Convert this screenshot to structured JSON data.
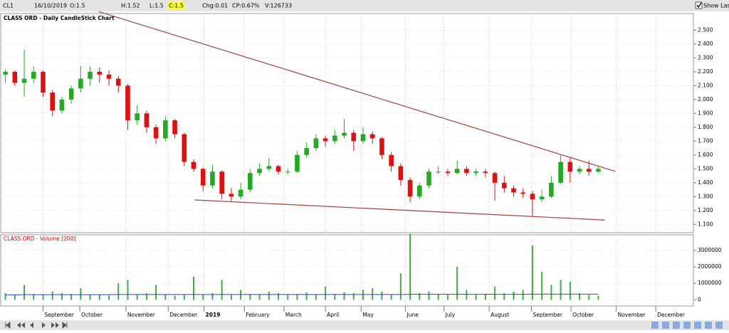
{
  "toolbar": {
    "symbol": "CL1",
    "date": "16/10/2019",
    "open": "O:1.5",
    "high": "H:1.52",
    "low": "L:1.5",
    "close": "C:1.5",
    "change": "Chg:0.01",
    "change_pct": "CP:0.67%",
    "volume": "V:126733",
    "show_last": "Show Last"
  },
  "chart_data": [
    {
      "type": "candlestick",
      "title": "CLASS ORD - Daily CandleStick Chart",
      "x": [
        0,
        1,
        2,
        3,
        4,
        5,
        6,
        7,
        8,
        9,
        10,
        11,
        12,
        13,
        14,
        15,
        16,
        17,
        18,
        19,
        20,
        21,
        22,
        23,
        24,
        25,
        26,
        27,
        28,
        29,
        30,
        31,
        32,
        33,
        34,
        35,
        36,
        37,
        38,
        39,
        40,
        41,
        42,
        43,
        44,
        45,
        46,
        47,
        48,
        49,
        50,
        51,
        52,
        53,
        54,
        55,
        56,
        57,
        58,
        59,
        60,
        61,
        62,
        63
      ],
      "open": [
        2.18,
        2.2,
        2.12,
        2.15,
        2.2,
        2.05,
        1.92,
        2.0,
        2.08,
        2.15,
        2.2,
        2.18,
        2.15,
        2.1,
        1.85,
        1.9,
        1.8,
        1.72,
        1.85,
        1.75,
        1.55,
        1.5,
        1.38,
        1.48,
        1.32,
        1.3,
        1.35,
        1.47,
        1.5,
        1.52,
        1.48,
        1.48,
        1.6,
        1.65,
        1.72,
        1.7,
        1.74,
        1.76,
        1.7,
        1.75,
        1.72,
        1.6,
        1.52,
        1.42,
        1.3,
        1.38,
        1.48,
        1.48,
        1.47,
        1.5,
        1.47,
        1.48,
        1.47,
        1.4,
        1.36,
        1.33,
        1.32,
        1.28,
        1.3,
        1.4,
        1.55,
        1.48,
        1.5,
        1.48
      ],
      "high": [
        2.22,
        2.21,
        2.36,
        2.24,
        2.21,
        2.07,
        2.02,
        2.1,
        2.24,
        2.24,
        2.23,
        2.21,
        2.17,
        2.11,
        1.96,
        1.92,
        1.82,
        1.88,
        1.86,
        1.76,
        1.57,
        1.51,
        1.53,
        1.49,
        1.36,
        1.4,
        1.5,
        1.54,
        1.58,
        1.53,
        1.5,
        1.63,
        1.69,
        1.75,
        1.74,
        1.78,
        1.86,
        1.78,
        1.8,
        1.77,
        1.73,
        1.62,
        1.54,
        1.44,
        1.4,
        1.5,
        1.52,
        1.5,
        1.56,
        1.52,
        1.5,
        1.5,
        1.48,
        1.45,
        1.38,
        1.36,
        1.34,
        1.35,
        1.45,
        1.6,
        1.58,
        1.52,
        1.56,
        1.52
      ],
      "low": [
        2.12,
        2.1,
        2.02,
        2.12,
        2.02,
        1.88,
        1.9,
        1.97,
        2.05,
        2.1,
        2.12,
        2.1,
        2.05,
        1.78,
        1.82,
        1.76,
        1.68,
        1.7,
        1.72,
        1.52,
        1.48,
        1.34,
        1.36,
        1.28,
        1.26,
        1.28,
        1.33,
        1.45,
        1.48,
        1.46,
        1.46,
        1.47,
        1.58,
        1.63,
        1.66,
        1.68,
        1.72,
        1.63,
        1.68,
        1.68,
        1.57,
        1.48,
        1.38,
        1.26,
        1.28,
        1.36,
        1.46,
        1.45,
        1.46,
        1.45,
        1.45,
        1.44,
        1.27,
        1.33,
        1.3,
        1.29,
        1.16,
        1.26,
        1.29,
        1.39,
        1.4,
        1.46,
        1.45,
        1.47
      ],
      "close": [
        2.2,
        2.12,
        2.15,
        2.2,
        2.05,
        1.92,
        2.0,
        2.08,
        2.15,
        2.2,
        2.18,
        2.15,
        2.1,
        1.85,
        1.9,
        1.8,
        1.72,
        1.85,
        1.75,
        1.55,
        1.5,
        1.38,
        1.48,
        1.32,
        1.3,
        1.35,
        1.47,
        1.5,
        1.52,
        1.48,
        1.48,
        1.6,
        1.65,
        1.72,
        1.7,
        1.74,
        1.76,
        1.7,
        1.75,
        1.72,
        1.6,
        1.52,
        1.42,
        1.3,
        1.38,
        1.48,
        1.48,
        1.47,
        1.5,
        1.47,
        1.48,
        1.47,
        1.4,
        1.36,
        1.33,
        1.32,
        1.28,
        1.3,
        1.4,
        1.55,
        1.48,
        1.5,
        1.48,
        1.5
      ],
      "up_color": "#22aa22",
      "down_color": "#dd1111",
      "trendlines": [
        {
          "x": [
            9.9,
            64.8
          ],
          "y": [
            2.634,
            1.482
          ],
          "color": "#a04040"
        },
        {
          "x": [
            20.1,
            63.7
          ],
          "y": [
            1.276,
            1.131
          ],
          "color": "#a04040"
        }
      ],
      "xlim": [
        -0.5,
        73.1
      ],
      "ylim": [
        1.04,
        2.62
      ],
      "xticks": [
        {
          "value": 4.0,
          "label": "September"
        },
        {
          "value": 7.9,
          "label": "October"
        },
        {
          "value": 12.8,
          "label": "November"
        },
        {
          "value": 17.3,
          "label": "December"
        },
        {
          "value": 21.1,
          "label": "2019"
        },
        {
          "value": 25.4,
          "label": "February"
        },
        {
          "value": 29.6,
          "label": "March"
        },
        {
          "value": 34.0,
          "label": "April"
        },
        {
          "value": 37.8,
          "label": "May"
        },
        {
          "value": 42.5,
          "label": "June"
        },
        {
          "value": 46.6,
          "label": "July"
        },
        {
          "value": 51.4,
          "label": "August"
        },
        {
          "value": 55.9,
          "label": "September"
        },
        {
          "value": 60.1,
          "label": "October"
        },
        {
          "value": 64.9,
          "label": "November"
        },
        {
          "value": 69.1,
          "label": "December"
        }
      ],
      "yticks": [
        {
          "value": 1.1,
          "label": "1.100"
        },
        {
          "value": 1.2,
          "label": "1.200"
        },
        {
          "value": 1.3,
          "label": "1.300"
        },
        {
          "value": 1.4,
          "label": "1.400"
        },
        {
          "value": 1.5,
          "label": "1.500"
        },
        {
          "value": 1.6,
          "label": "1.600"
        },
        {
          "value": 1.7,
          "label": "1.700"
        },
        {
          "value": 1.8,
          "label": "1.800"
        },
        {
          "value": 1.9,
          "label": "1.900"
        },
        {
          "value": 2.0,
          "label": "2.000"
        },
        {
          "value": 2.1,
          "label": "2.100"
        },
        {
          "value": 2.2,
          "label": "2.200"
        },
        {
          "value": 2.3,
          "label": "2.300"
        },
        {
          "value": 2.4,
          "label": "2.400"
        },
        {
          "value": 2.5,
          "label": "2.500"
        }
      ],
      "grid": true
    },
    {
      "type": "bar",
      "title": "CLASS ORD - Volume [200]",
      "values": [
        400000,
        300000,
        900000,
        350000,
        300000,
        500000,
        400000,
        350000,
        700000,
        300000,
        300000,
        250000,
        1000000,
        1200000,
        300000,
        400000,
        900000,
        300000,
        250000,
        300000,
        1400000,
        300000,
        400000,
        1200000,
        300000,
        600000,
        350000,
        300000,
        500000,
        400000,
        300000,
        350000,
        450000,
        300000,
        800000,
        350000,
        450000,
        400000,
        600000,
        700000,
        500000,
        300000,
        1600000,
        4000000,
        400000,
        500000,
        350000,
        300000,
        2000000,
        600000,
        300000,
        350000,
        800000,
        400000,
        500000,
        600000,
        3300000,
        1700000,
        900000,
        1200000,
        1100000,
        400000,
        300000,
        250000
      ],
      "moving_average": [
        300000,
        300000,
        310000,
        310000,
        310000,
        310000,
        310000,
        310000,
        310000,
        310000,
        310000,
        310000,
        320000,
        320000,
        320000,
        320000,
        320000,
        320000,
        320000,
        320000,
        320000,
        320000,
        320000,
        320000,
        320000,
        320000,
        320000,
        320000,
        320000,
        320000,
        320000,
        320000,
        320000,
        320000,
        320000,
        320000,
        320000,
        320000,
        320000,
        320000,
        320000,
        320000,
        320000,
        330000,
        330000,
        330000,
        330000,
        330000,
        330000,
        330000,
        330000,
        330000,
        330000,
        330000,
        330000,
        330000,
        340000,
        340000,
        340000,
        340000,
        340000,
        340000,
        340000,
        340000
      ],
      "color": "#44aa44",
      "average_color": "#3344bb",
      "ylim": [
        -375000,
        3940000
      ],
      "yticks": [
        0,
        1000000,
        2000000,
        3000000
      ],
      "grid": true
    }
  ]
}
